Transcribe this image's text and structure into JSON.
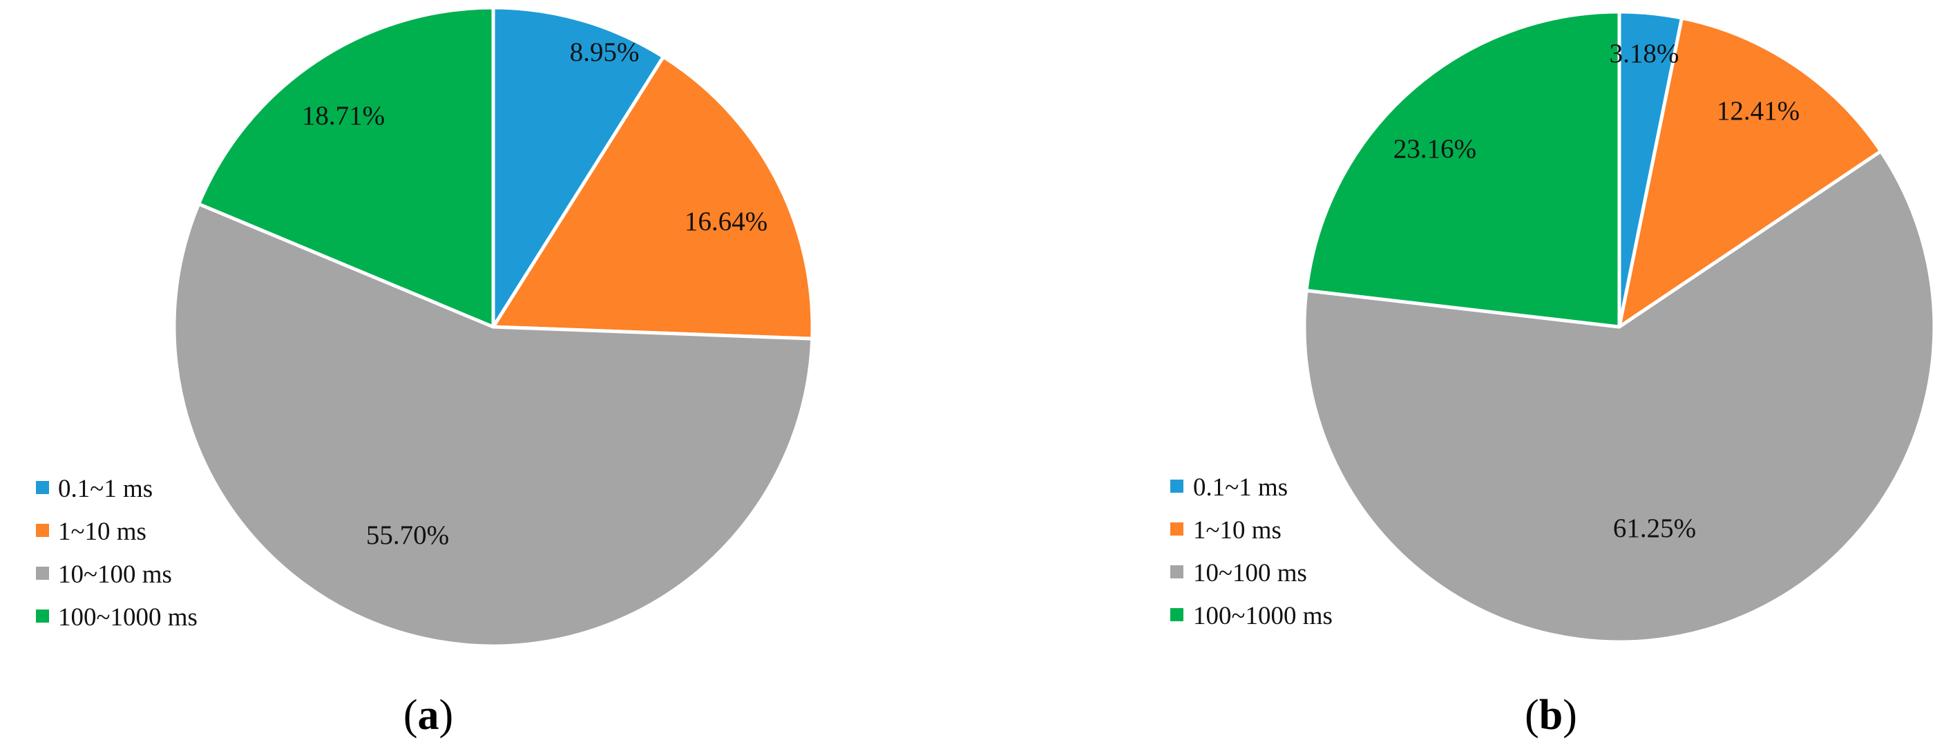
{
  "chart_data": [
    {
      "type": "pie",
      "panel_label": "a",
      "categories": [
        "0.1~1 ms",
        "1~10 ms",
        "10~100 ms",
        "100~1000 ms"
      ],
      "values": [
        8.95,
        16.64,
        55.7,
        18.71
      ],
      "value_labels": [
        "8.95%",
        "16.64%",
        "55.70%",
        "18.71%"
      ],
      "colors": [
        "#1e9bd7",
        "#fd8228",
        "#a5a5a5",
        "#00b04f"
      ],
      "legend": {
        "placement": "bottom-left",
        "entries": [
          "0.1~1 ms",
          "1~10 ms",
          "10~100 ms",
          "100~1000 ms"
        ]
      }
    },
    {
      "type": "pie",
      "panel_label": "b",
      "categories": [
        "0.1~1 ms",
        "1~10 ms",
        "10~100 ms",
        "100~1000 ms"
      ],
      "values": [
        3.18,
        12.41,
        61.25,
        23.16
      ],
      "value_labels": [
        "3.18%",
        "12.41%",
        "61.25%",
        "23.16%"
      ],
      "colors": [
        "#1e9bd7",
        "#fd8228",
        "#a5a5a5",
        "#00b04f"
      ],
      "legend": {
        "placement": "bottom-left",
        "entries": [
          "0.1~1 ms",
          "1~10 ms",
          "10~100 ms",
          "100~1000 ms"
        ]
      }
    }
  ]
}
